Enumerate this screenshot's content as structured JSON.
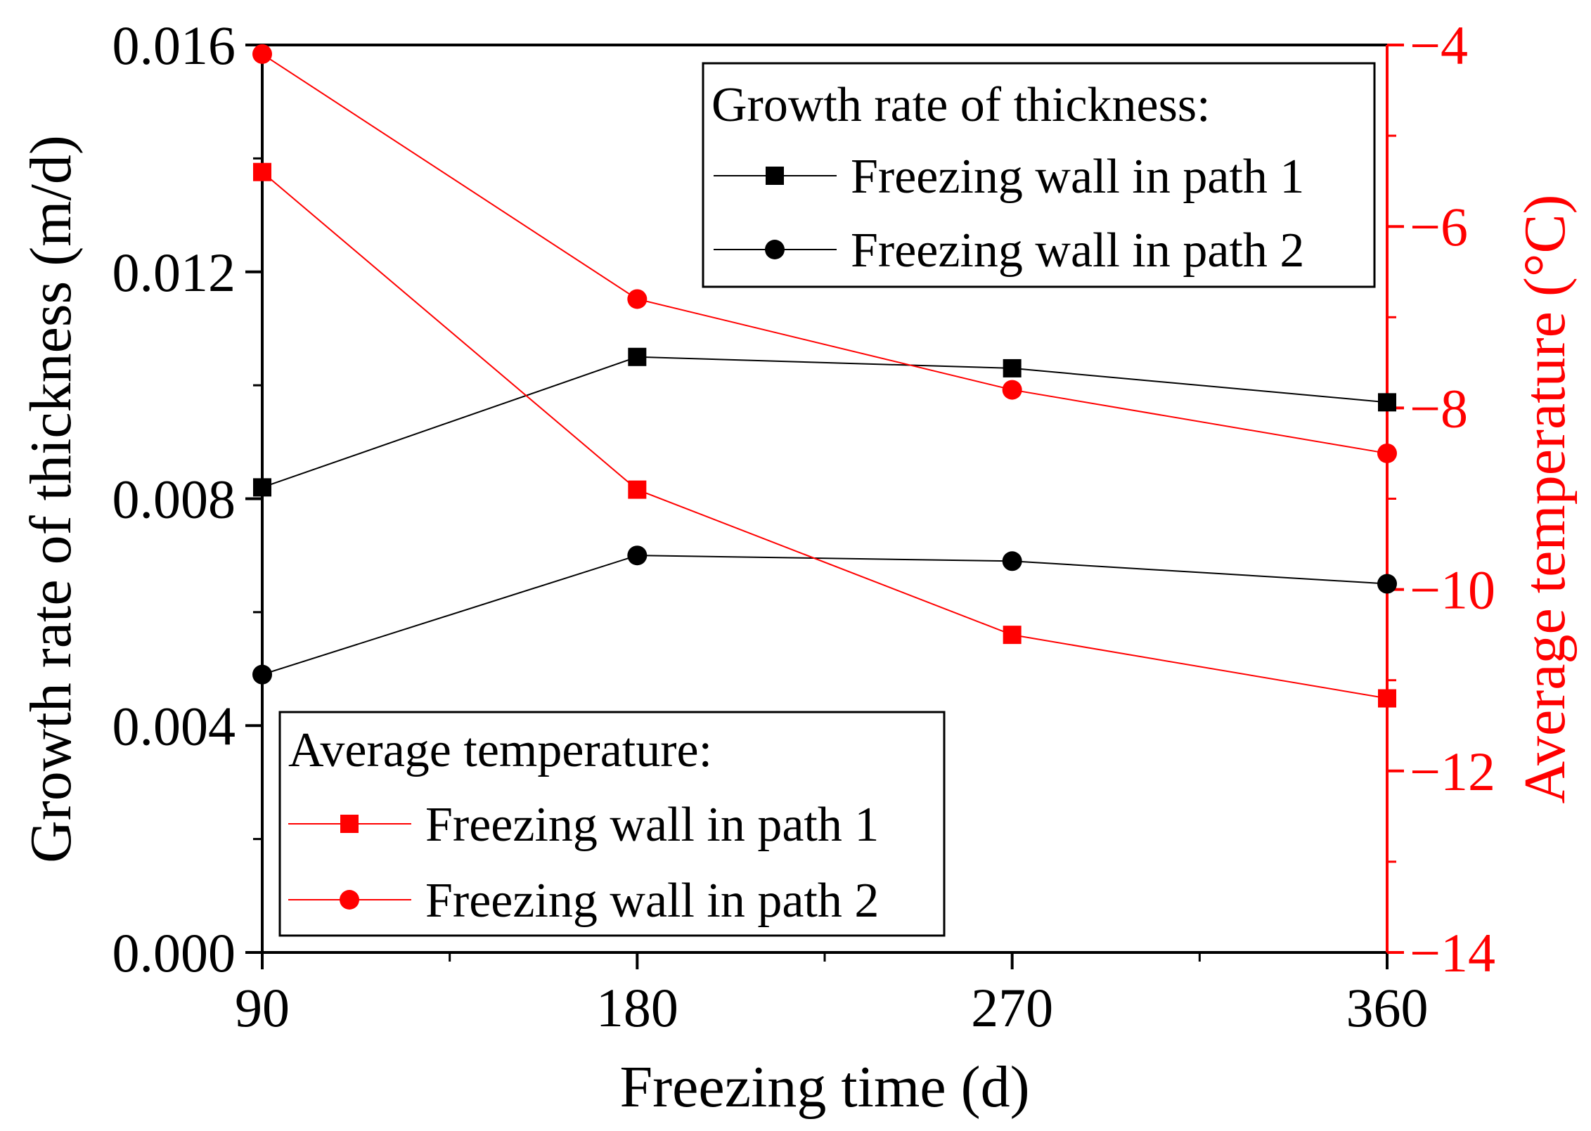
{
  "chart_data": {
    "type": "line",
    "xlabel": "Freezing time (d)",
    "ylabel_left": "Growth rate of thickness (m/d)",
    "ylabel_right": "Average temperature (°C)",
    "x": [
      90,
      180,
      270,
      360
    ],
    "xlim": [
      90,
      360
    ],
    "x_ticks": [
      "90",
      "180",
      "270",
      "360"
    ],
    "ylim_left": [
      0,
      0.016
    ],
    "y_ticks_left": [
      "0.000",
      "0.004",
      "0.008",
      "0.012",
      "0.016"
    ],
    "ylim_right": [
      -14,
      -4
    ],
    "y_ticks_right": [
      "−14",
      "−12",
      "−10",
      "−8",
      "−6",
      "−4"
    ],
    "series": [
      {
        "name": "Freezing wall in path 1",
        "group": "growth",
        "axis": "left",
        "marker": "square",
        "color": "#000000",
        "values": [
          0.0082,
          0.0105,
          0.0103,
          0.0097
        ]
      },
      {
        "name": "Freezing wall in path 2",
        "group": "growth",
        "axis": "left",
        "marker": "circle",
        "color": "#000000",
        "values": [
          0.0049,
          0.007,
          0.0069,
          0.0065
        ]
      },
      {
        "name": "Freezing wall in path 1",
        "group": "temperature",
        "axis": "right",
        "marker": "square",
        "color": "#ff0000",
        "values": [
          -5.4,
          -8.9,
          -10.5,
          -11.2
        ]
      },
      {
        "name": "Freezing wall in path 2",
        "group": "temperature",
        "axis": "right",
        "marker": "circle",
        "color": "#ff0000",
        "values": [
          -4.1,
          -6.8,
          -7.8,
          -8.5
        ]
      }
    ],
    "legends": [
      {
        "title": "Growth rate of thickness:",
        "placement": "top-right",
        "entries": [
          "Freezing wall in path 1",
          "Freezing wall in path 2"
        ]
      },
      {
        "title": "Average temperature:",
        "placement": "bottom-left",
        "entries": [
          "Freezing wall in path 1",
          "Freezing wall in path 2"
        ]
      }
    ],
    "colors": {
      "left_axis": "#000000",
      "right_axis": "#ff0000"
    }
  }
}
